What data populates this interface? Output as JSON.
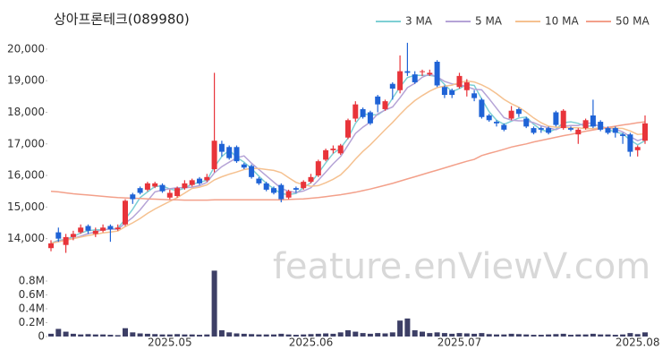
{
  "chart_data": {
    "type": "candlestick",
    "title": "상아프론테크(089980)",
    "watermark": "feature.enViewV.com",
    "up_color": "#e8343a",
    "down_color": "#1f63d6",
    "volume_color": "#3d3f66",
    "categories": [
      null,
      null,
      null,
      null,
      null,
      null,
      null,
      null,
      null,
      null,
      null,
      null,
      null,
      null,
      null,
      null,
      "2025.05",
      null,
      null,
      null,
      null,
      null,
      null,
      null,
      null,
      null,
      null,
      null,
      null,
      null,
      null,
      null,
      null,
      null,
      null,
      "2025.06",
      null,
      null,
      null,
      null,
      null,
      null,
      null,
      null,
      null,
      null,
      null,
      null,
      null,
      null,
      null,
      null,
      null,
      null,
      null,
      "2025.07",
      null,
      null,
      null,
      null,
      null,
      null,
      null,
      null,
      null,
      null,
      null,
      null,
      null,
      null,
      null,
      null,
      null,
      null,
      null,
      null,
      null,
      null,
      null,
      "2025.08",
      null
    ],
    "ohlc": [
      [
        13700,
        13950,
        13600,
        13850
      ],
      [
        14200,
        14350,
        13900,
        14000
      ],
      [
        13800,
        14150,
        13550,
        14050
      ],
      [
        14050,
        14250,
        13950,
        14150
      ],
      [
        14200,
        14450,
        14150,
        14350
      ],
      [
        14400,
        14450,
        14150,
        14250
      ],
      [
        14150,
        14350,
        14050,
        14250
      ],
      [
        14250,
        14450,
        14200,
        14350
      ],
      [
        14400,
        14450,
        13900,
        14300
      ],
      [
        14300,
        14450,
        14250,
        14350
      ],
      [
        14450,
        15250,
        14400,
        15200
      ],
      [
        15400,
        15450,
        15100,
        15250
      ],
      [
        15600,
        15650,
        15400,
        15450
      ],
      [
        15550,
        15800,
        15500,
        15750
      ],
      [
        15650,
        15800,
        15600,
        15750
      ],
      [
        15700,
        15750,
        15450,
        15500
      ],
      [
        15300,
        15550,
        15250,
        15450
      ],
      [
        15350,
        15650,
        15300,
        15600
      ],
      [
        15600,
        15850,
        15550,
        15750
      ],
      [
        15700,
        15900,
        15650,
        15850
      ],
      [
        15900,
        15950,
        15700,
        15750
      ],
      [
        15850,
        16050,
        15800,
        15950
      ],
      [
        16200,
        19250,
        16100,
        17100
      ],
      [
        17000,
        17100,
        16600,
        16750
      ],
      [
        16900,
        16950,
        16500,
        16550
      ],
      [
        16900,
        16950,
        16400,
        16450
      ],
      [
        16350,
        16400,
        16200,
        16250
      ],
      [
        16300,
        16350,
        15900,
        15950
      ],
      [
        15900,
        15950,
        15700,
        15750
      ],
      [
        15750,
        15800,
        15500,
        15550
      ],
      [
        15600,
        15650,
        15400,
        15450
      ],
      [
        15700,
        15750,
        15150,
        15250
      ],
      [
        15300,
        15550,
        15250,
        15500
      ],
      [
        15600,
        15650,
        15450,
        15550
      ],
      [
        15600,
        15850,
        15550,
        15800
      ],
      [
        15800,
        16050,
        15750,
        15950
      ],
      [
        16000,
        16500,
        15950,
        16450
      ],
      [
        16500,
        16850,
        16450,
        16800
      ],
      [
        16800,
        16950,
        16700,
        16850
      ],
      [
        16700,
        17000,
        16650,
        16950
      ],
      [
        17200,
        17800,
        17150,
        17750
      ],
      [
        17800,
        18350,
        17700,
        18250
      ],
      [
        18100,
        18150,
        17800,
        17850
      ],
      [
        18000,
        18050,
        17600,
        17650
      ],
      [
        18500,
        18550,
        18000,
        18250
      ],
      [
        18100,
        18400,
        18050,
        18350
      ],
      [
        18900,
        18950,
        18400,
        18750
      ],
      [
        18700,
        19800,
        18600,
        19300
      ],
      [
        19300,
        20200,
        19150,
        19250
      ],
      [
        19200,
        19300,
        18900,
        18950
      ],
      [
        19300,
        19350,
        19150,
        19300
      ],
      [
        19200,
        19350,
        19150,
        19250
      ],
      [
        19600,
        19650,
        18800,
        18850
      ],
      [
        18800,
        18850,
        18450,
        18550
      ],
      [
        18700,
        18750,
        18450,
        18550
      ],
      [
        18800,
        19250,
        18750,
        19150
      ],
      [
        18700,
        19050,
        18500,
        18950
      ],
      [
        18600,
        18700,
        18350,
        18450
      ],
      [
        18400,
        18450,
        17800,
        17850
      ],
      [
        17900,
        17950,
        17700,
        17750
      ],
      [
        17700,
        17750,
        17550,
        17650
      ],
      [
        17600,
        17650,
        17400,
        17450
      ],
      [
        17800,
        18200,
        17750,
        18050
      ],
      [
        18100,
        18150,
        17850,
        17950
      ],
      [
        17800,
        17850,
        17500,
        17550
      ],
      [
        17500,
        17550,
        17300,
        17350
      ],
      [
        17500,
        17550,
        17350,
        17450
      ],
      [
        17500,
        17550,
        17300,
        17350
      ],
      [
        18000,
        18050,
        17550,
        17600
      ],
      [
        17500,
        18100,
        17450,
        18050
      ],
      [
        17500,
        17550,
        17400,
        17450
      ],
      [
        17300,
        17500,
        17000,
        17450
      ],
      [
        17500,
        17800,
        17450,
        17750
      ],
      [
        17900,
        18400,
        17500,
        17550
      ],
      [
        17700,
        17750,
        17400,
        17450
      ],
      [
        17500,
        17550,
        17300,
        17350
      ],
      [
        17500,
        17550,
        17200,
        17350
      ],
      [
        17300,
        17350,
        17000,
        17250
      ],
      [
        17300,
        17350,
        16600,
        16750
      ],
      [
        16800,
        16950,
        16600,
        16900
      ],
      [
        17100,
        17900,
        17000,
        17650
      ]
    ],
    "volume": [
      40000,
      110000,
      70000,
      40000,
      30000,
      35000,
      30000,
      30000,
      25000,
      20000,
      120000,
      60000,
      45000,
      40000,
      35000,
      30000,
      30000,
      35000,
      30000,
      30000,
      25000,
      30000,
      950000,
      90000,
      60000,
      45000,
      40000,
      35000,
      30000,
      30000,
      30000,
      40000,
      30000,
      25000,
      30000,
      35000,
      40000,
      45000,
      40000,
      60000,
      90000,
      70000,
      50000,
      40000,
      50000,
      45000,
      60000,
      230000,
      260000,
      90000,
      70000,
      50000,
      60000,
      50000,
      40000,
      50000,
      45000,
      40000,
      50000,
      35000,
      30000,
      30000,
      40000,
      35000,
      30000,
      25000,
      25000,
      30000,
      35000,
      40000,
      25000,
      30000,
      30000,
      40000,
      30000,
      30000,
      25000,
      30000,
      50000,
      35000,
      60000
    ],
    "series": [
      {
        "name": "3 MA",
        "color": "#7ecfd4",
        "values": [
          13850,
          13950,
          13970,
          14070,
          14180,
          14250,
          14280,
          14280,
          14300,
          14330,
          14620,
          14930,
          15300,
          15480,
          15650,
          15670,
          15570,
          15520,
          15600,
          15730,
          15780,
          15850,
          16270,
          16600,
          16800,
          16580,
          16420,
          16220,
          15980,
          15750,
          15580,
          15420,
          15400,
          15430,
          15620,
          15770,
          16070,
          16400,
          16700,
          16870,
          17180,
          17650,
          17950,
          17920,
          17920,
          18080,
          18450,
          18800,
          19100,
          19170,
          19170,
          19170,
          19130,
          18880,
          18650,
          18750,
          18880,
          18850,
          18420,
          18020,
          17750,
          17620,
          17720,
          17820,
          17850,
          17620,
          17450,
          17380,
          17470,
          17670,
          17700,
          17650,
          17550,
          17580,
          17580,
          17450,
          17380,
          17320,
          17120,
          16970,
          17100
        ]
      },
      {
        "name": "5 MA",
        "color": "#b5a3d6",
        "values": [
          13850,
          13920,
          13970,
          14010,
          14080,
          14160,
          14210,
          14290,
          14300,
          14300,
          14490,
          14670,
          14910,
          15200,
          15480,
          15540,
          15580,
          15610,
          15610,
          15630,
          15680,
          15780,
          16080,
          16280,
          16420,
          16560,
          16620,
          16390,
          16190,
          15990,
          15790,
          15590,
          15500,
          15460,
          15510,
          15610,
          15850,
          16110,
          16370,
          16600,
          16960,
          17330,
          17530,
          17690,
          17950,
          18070,
          18170,
          18460,
          18780,
          18920,
          19110,
          19210,
          19120,
          18980,
          18900,
          18870,
          18810,
          18730,
          18710,
          18430,
          18130,
          17830,
          17750,
          17730,
          17730,
          17670,
          17570,
          17510,
          17450,
          17560,
          17580,
          17580,
          17660,
          17650,
          17530,
          17510,
          17470,
          17380,
          17230,
          17100,
          17180
        ]
      },
      {
        "name": "10 MA",
        "color": "#f5c190",
        "values": [
          13850,
          13900,
          13950,
          14000,
          14050,
          14100,
          14140,
          14180,
          14210,
          14240,
          14380,
          14500,
          14640,
          14800,
          14940,
          15060,
          15180,
          15300,
          15440,
          15590,
          15630,
          15700,
          15860,
          15960,
          16040,
          16110,
          16190,
          16220,
          16220,
          16190,
          16160,
          16090,
          15930,
          15780,
          15710,
          15660,
          15680,
          15770,
          15880,
          16020,
          16250,
          16520,
          16760,
          16970,
          17210,
          17450,
          17680,
          17930,
          18170,
          18370,
          18530,
          18670,
          18780,
          18830,
          18860,
          18940,
          18990,
          18960,
          18870,
          18750,
          18590,
          18410,
          18270,
          18160,
          18000,
          17820,
          17670,
          17560,
          17530,
          17530,
          17510,
          17510,
          17480,
          17480,
          17510,
          17510,
          17500,
          17490,
          17410,
          17300,
          17320
        ]
      },
      {
        "name": "50 MA",
        "color": "#f3a08a",
        "values": [
          15500,
          15480,
          15450,
          15420,
          15400,
          15380,
          15360,
          15340,
          15320,
          15300,
          15290,
          15280,
          15270,
          15260,
          15250,
          15240,
          15230,
          15230,
          15220,
          15220,
          15220,
          15220,
          15230,
          15230,
          15230,
          15230,
          15230,
          15230,
          15230,
          15230,
          15230,
          15230,
          15240,
          15250,
          15260,
          15280,
          15300,
          15330,
          15360,
          15390,
          15430,
          15470,
          15520,
          15570,
          15630,
          15690,
          15750,
          15820,
          15890,
          15960,
          16030,
          16100,
          16170,
          16240,
          16310,
          16380,
          16450,
          16510,
          16630,
          16700,
          16760,
          16830,
          16900,
          16950,
          17000,
          17060,
          17110,
          17160,
          17210,
          17260,
          17300,
          17350,
          17400,
          17440,
          17480,
          17520,
          17560,
          17600,
          17630,
          17670,
          17700
        ]
      }
    ],
    "ylim": [
      13480,
      21130
    ],
    "yticks": [
      {
        "value": 14000,
        "label": "14,000"
      },
      {
        "value": 15000,
        "label": "15,000"
      },
      {
        "value": 16000,
        "label": "16,000"
      },
      {
        "value": 17000,
        "label": "17,000"
      },
      {
        "value": 18000,
        "label": "18,000"
      },
      {
        "value": 19000,
        "label": "19,000"
      },
      {
        "value": 20000,
        "label": "20,000"
      }
    ],
    "vlim": [
      0,
      955000
    ],
    "vticks": [
      0,
      {
        "value": 200000,
        "label": "0.2M"
      },
      {
        "value": 400000,
        "label": "0.4M"
      },
      {
        "value": 600000,
        "label": "0.6M"
      },
      {
        "value": 800000,
        "label": "0.8M"
      }
    ]
  }
}
